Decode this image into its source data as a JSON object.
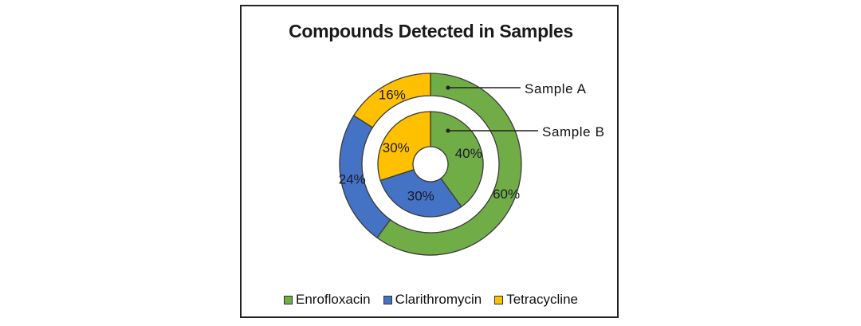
{
  "chart_data": {
    "type": "donut",
    "title": "Compounds Detected in Samples",
    "categories": [
      "Enrofloxacin",
      "Clarithromycin",
      "Tetracycline"
    ],
    "colors": [
      "#70ad47",
      "#4472c4",
      "#ffc000"
    ],
    "series": [
      {
        "name": "Sample A",
        "ring": "outer",
        "values": [
          60,
          24,
          16
        ],
        "labels": [
          "60%",
          "24%",
          "16%"
        ]
      },
      {
        "name": "Sample B",
        "ring": "inner",
        "values": [
          40,
          30,
          30
        ],
        "labels": [
          "40%",
          "30%",
          "30%"
        ]
      }
    ],
    "legend_position": "bottom"
  }
}
